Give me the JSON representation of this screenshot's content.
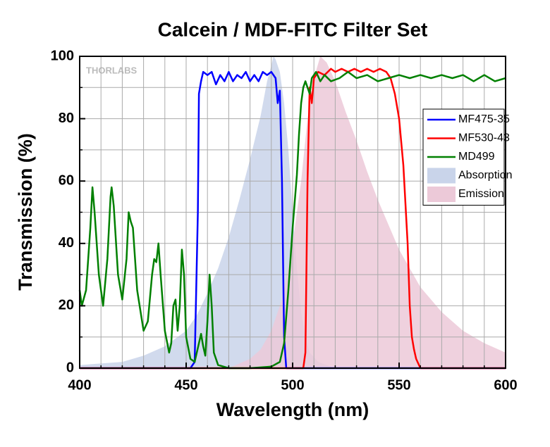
{
  "chart_data": {
    "type": "line",
    "title": "Calcein / MDF-FITC Filter Set",
    "watermark": "THORLABS",
    "xlabel": "Wavelength (nm)",
    "ylabel": "Transmission (%)",
    "xlim": [
      400,
      600
    ],
    "ylim": [
      0,
      100
    ],
    "xticks": [
      400,
      450,
      500,
      550,
      600
    ],
    "yticks": [
      0,
      20,
      40,
      60,
      80,
      100
    ],
    "xminorticks": [
      410,
      420,
      430,
      440,
      460,
      470,
      480,
      490,
      510,
      520,
      530,
      540,
      560,
      570,
      580,
      590
    ],
    "yminorticks": [
      10,
      30,
      50,
      70,
      90
    ],
    "grid": true,
    "legend": "right",
    "series": [
      {
        "name": "Absorption",
        "style": "area",
        "color": "#c9d4ea",
        "x": [
          400,
          420,
          430,
          440,
          450,
          455,
          460,
          465,
          470,
          475,
          480,
          485,
          488,
          490,
          491,
          492,
          494,
          496,
          498,
          500,
          502,
          504,
          506,
          508,
          512,
          520,
          600
        ],
        "values": [
          1,
          2,
          4,
          7,
          12,
          17,
          24,
          32,
          42,
          54,
          67,
          81,
          92,
          97,
          100,
          99,
          95,
          85,
          70,
          50,
          32,
          18,
          10,
          5,
          2,
          0,
          0
        ]
      },
      {
        "name": "Emission",
        "style": "area",
        "color": "#ecc9d8",
        "x": [
          470,
          480,
          485,
          490,
          495,
          500,
          504,
          507,
          510,
          513,
          516,
          520,
          525,
          530,
          535,
          540,
          545,
          550,
          555,
          560,
          570,
          580,
          590,
          600
        ],
        "values": [
          0,
          3,
          6,
          12,
          22,
          40,
          60,
          80,
          93,
          100,
          98,
          92,
          82,
          73,
          63,
          54,
          46,
          38,
          32,
          26,
          18,
          12,
          8,
          5
        ]
      },
      {
        "name": "MF475-35",
        "style": "line",
        "color": "#0000ff",
        "x": [
          400,
          452,
          454,
          455.5,
          456,
          457,
          458,
          460,
          462,
          464,
          466,
          468,
          470,
          472,
          474,
          476,
          478,
          480,
          482,
          484,
          486,
          488,
          490,
          492,
          493,
          494,
          495,
          496,
          497,
          600
        ],
        "values": [
          0,
          0,
          2,
          50,
          88,
          92,
          95,
          94,
          95,
          91,
          94,
          92,
          95,
          92,
          94,
          93,
          95,
          92,
          94,
          92,
          95,
          94,
          95,
          93,
          85,
          89,
          60,
          10,
          0,
          0
        ]
      },
      {
        "name": "MF530-43",
        "style": "line",
        "color": "#ff0000",
        "x": [
          400,
          505,
          506,
          507,
          508,
          509,
          510,
          512,
          515,
          518,
          520,
          523,
          526,
          529,
          532,
          535,
          538,
          541,
          544,
          546,
          548,
          550,
          552,
          554,
          555,
          556,
          557,
          558,
          560,
          600
        ],
        "values": [
          0,
          0,
          5,
          60,
          90,
          85,
          93,
          95,
          94,
          96,
          95,
          96,
          95,
          96,
          95,
          96,
          95,
          96,
          95,
          93,
          88,
          80,
          65,
          40,
          20,
          10,
          6,
          3,
          0,
          0
        ]
      },
      {
        "name": "MD499",
        "style": "line",
        "color": "#008000",
        "x": [
          400,
          401,
          403,
          405,
          406,
          407,
          409,
          411,
          413,
          414.5,
          415,
          416,
          418,
          420,
          422,
          423,
          424,
          425,
          427,
          430,
          432,
          434,
          435,
          436,
          437,
          438,
          440,
          442,
          443,
          444,
          445,
          446,
          447,
          448,
          449,
          450,
          452,
          454,
          456,
          457,
          458,
          459,
          460,
          461,
          462,
          463,
          465,
          470,
          480,
          490,
          494,
          496,
          498,
          500,
          502,
          503,
          504,
          505,
          506,
          507,
          508,
          509,
          511,
          513,
          515,
          518,
          522,
          526,
          530,
          535,
          540,
          545,
          550,
          555,
          560,
          565,
          570,
          575,
          580,
          585,
          590,
          595,
          600
        ],
        "values": [
          25,
          20,
          25,
          45,
          58,
          50,
          30,
          20,
          35,
          55,
          58,
          52,
          30,
          22,
          35,
          50,
          47,
          45,
          25,
          12,
          15,
          30,
          35,
          34,
          40,
          30,
          12,
          5,
          8,
          20,
          22,
          12,
          20,
          38,
          30,
          10,
          3,
          2,
          8,
          11,
          7,
          4,
          15,
          30,
          20,
          5,
          1,
          0,
          0,
          0.5,
          2,
          8,
          25,
          45,
          62,
          75,
          85,
          90,
          92,
          90,
          88,
          93,
          95,
          92,
          94,
          92,
          93,
          95,
          93,
          94,
          92,
          93,
          94,
          93,
          94,
          93,
          94,
          93,
          94,
          92,
          94,
          92,
          93
        ]
      }
    ],
    "legend_order": [
      2,
      3,
      4,
      0,
      1
    ]
  }
}
